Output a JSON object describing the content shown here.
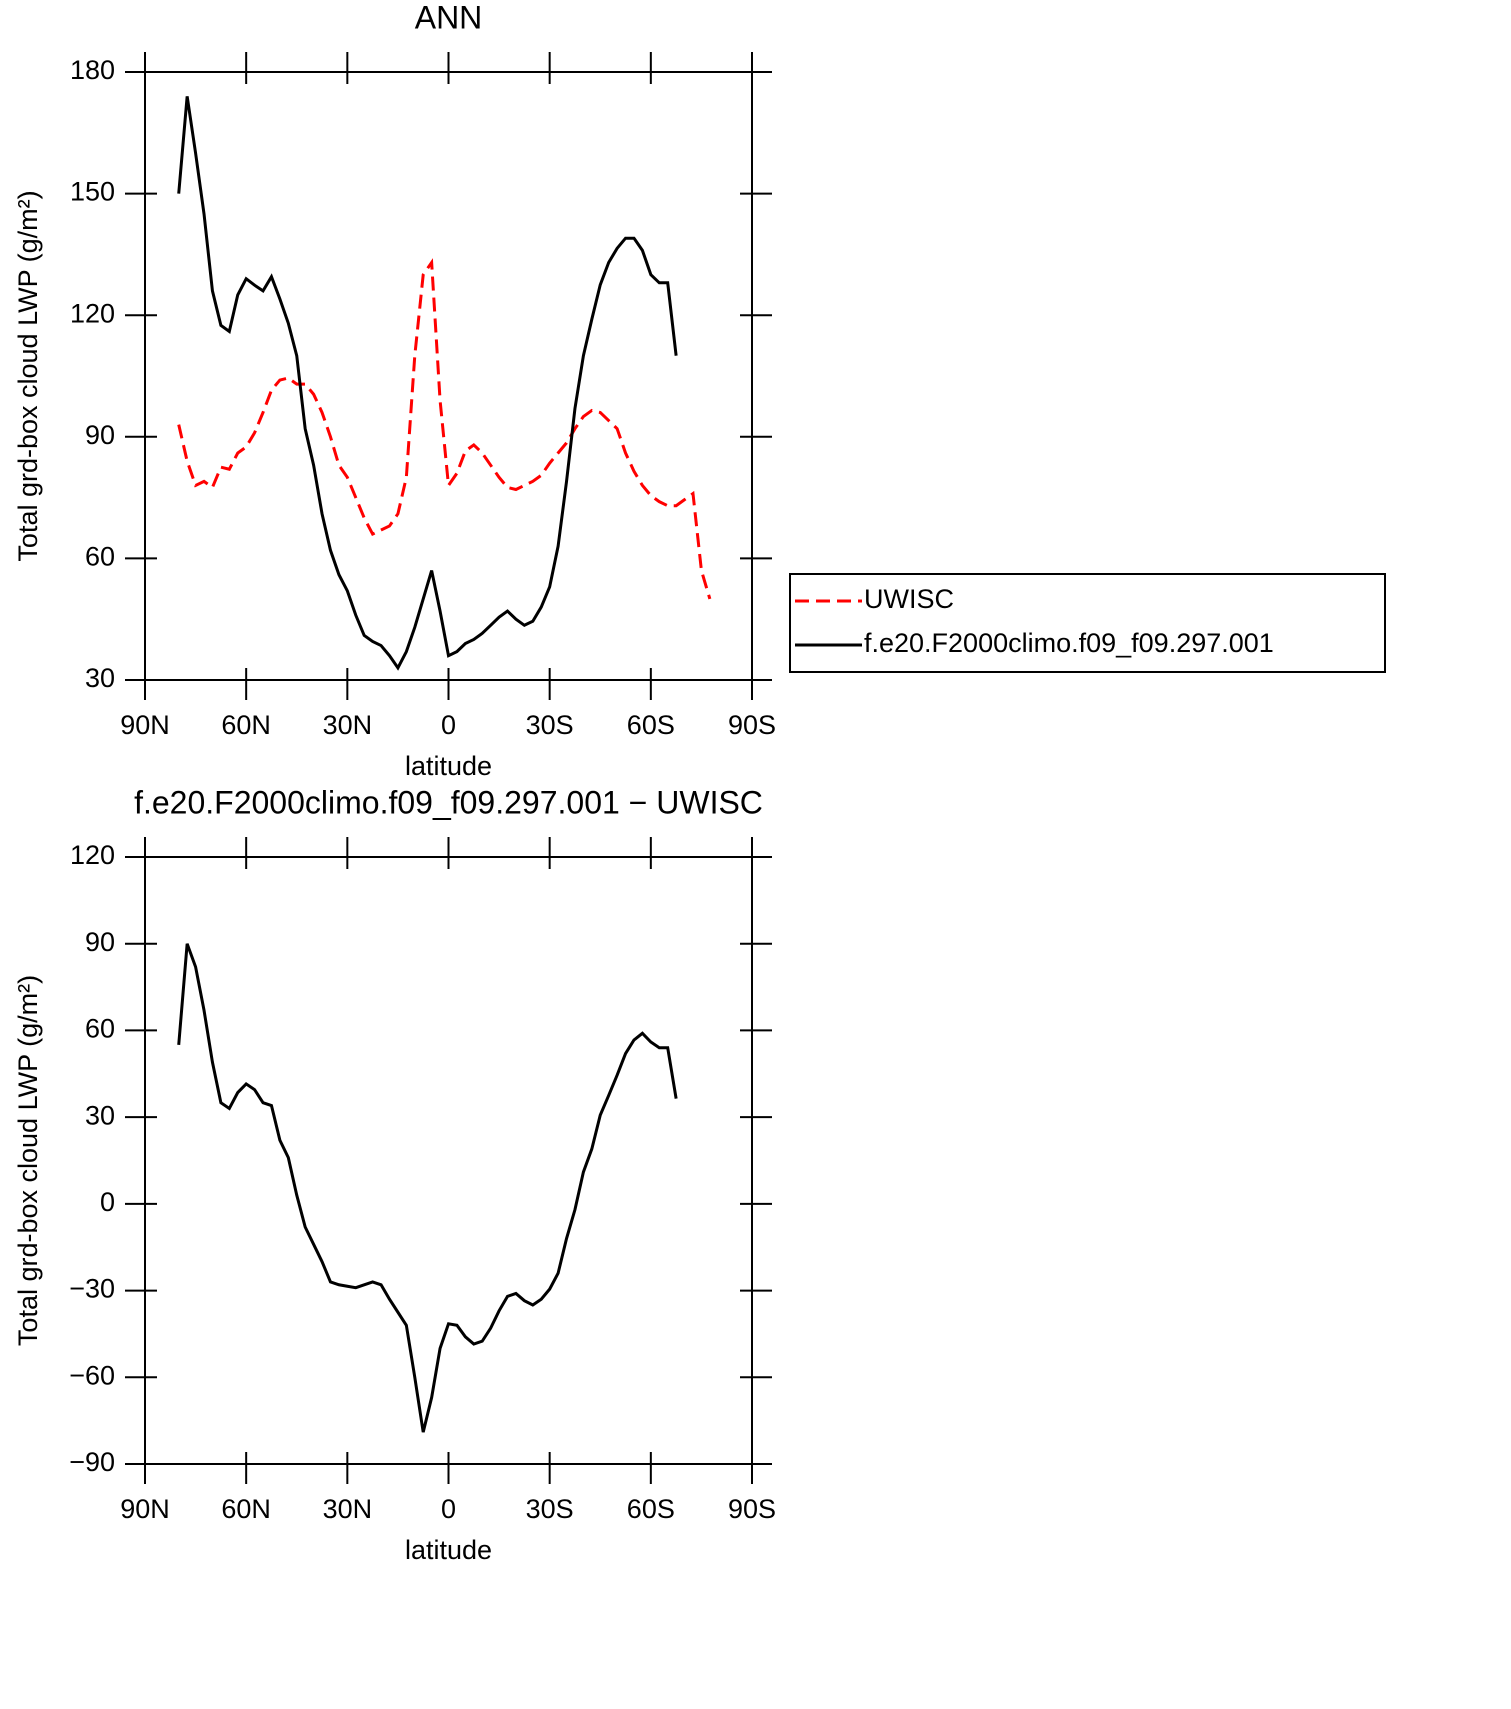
{
  "chart_data": [
    {
      "type": "line",
      "title": "ANN",
      "x_label": "latitude",
      "y_label": "Total grd-box cloud LWP (g/m²)",
      "x": [
        80,
        77.5,
        75,
        72.5,
        70,
        67.5,
        65,
        62.5,
        60,
        57.5,
        55,
        52.5,
        50,
        47.5,
        45,
        42.5,
        40,
        37.5,
        35,
        32.5,
        30,
        27.5,
        25,
        22.5,
        20,
        17.5,
        15,
        12.5,
        10,
        7.5,
        5,
        2.5,
        0,
        -2.5,
        -5,
        -7.5,
        -10,
        -12.5,
        -15,
        -17.5,
        -20,
        -22.5,
        -25,
        -27.5,
        -30,
        -32.5,
        -35,
        -37.5,
        -40,
        -42.5,
        -45,
        -47.5,
        -50,
        -52.5,
        -55,
        -57.5,
        -60,
        -62.5,
        -65,
        -67.5,
        -70,
        -72.5,
        -75,
        -77.5
      ],
      "xlim": [
        90,
        -90
      ],
      "xticks": [
        {
          "value": 90,
          "label": "90N"
        },
        {
          "value": 60,
          "label": "60N"
        },
        {
          "value": 30,
          "label": "30N"
        },
        0,
        {
          "value": -30,
          "label": "30S"
        },
        {
          "value": -60,
          "label": "60S"
        },
        {
          "value": -90,
          "label": "90S"
        }
      ],
      "ylim": [
        30,
        180
      ],
      "yticks": [
        30,
        60,
        90,
        120,
        150,
        180
      ],
      "legend": "right",
      "series": [
        {
          "name": "UWISC",
          "color": "#ff0000",
          "line_style": "dashed",
          "values": [
            93,
            84,
            78,
            79,
            77.5,
            82.5,
            82,
            86,
            87.5,
            91,
            96,
            101.5,
            104,
            104.5,
            103,
            103,
            100.5,
            96,
            90,
            83,
            80,
            75,
            70,
            66,
            67,
            68,
            71,
            80,
            110,
            130,
            133,
            99,
            78,
            81,
            86.5,
            88,
            86,
            83,
            80,
            77.5,
            77,
            78,
            79,
            80.5,
            83.5,
            86,
            88.5,
            92,
            95,
            96.5,
            96,
            94,
            92,
            86,
            81.5,
            78,
            75.5,
            74,
            73,
            73,
            74.5,
            76,
            57,
            50
          ]
        },
        {
          "name": "f.e20.F2000climo.f09_f09.297.001",
          "color": "#000000",
          "line_style": "solid",
          "values": [
            150,
            174,
            160,
            145,
            126,
            117.5,
            116,
            125,
            129,
            127.4,
            126,
            129.5,
            124,
            118,
            110,
            92,
            83,
            71,
            62,
            56,
            52,
            46,
            41,
            39.5,
            38.5,
            36,
            33,
            37,
            43,
            50,
            57,
            47,
            36,
            37,
            39,
            40,
            41.5,
            43.5,
            45.5,
            47,
            45,
            43.5,
            44.5,
            48,
            53,
            63,
            79,
            97,
            110,
            119,
            127.5,
            133,
            136.5,
            139,
            139,
            136,
            130,
            128,
            128,
            110,
            null,
            null,
            null,
            null
          ]
        }
      ]
    },
    {
      "type": "line",
      "title": "f.e20.F2000climo.f09_f09.297.001 − UWISC",
      "x_label": "latitude",
      "y_label": "Total grd-box cloud LWP (g/m²)",
      "x": [
        80,
        77.5,
        75,
        72.5,
        70,
        67.5,
        65,
        62.5,
        60,
        57.5,
        55,
        52.5,
        50,
        47.5,
        45,
        42.5,
        40,
        37.5,
        35,
        32.5,
        30,
        27.5,
        25,
        22.5,
        20,
        17.5,
        15,
        12.5,
        10,
        7.5,
        5,
        2.5,
        0,
        -2.5,
        -5,
        -7.5,
        -10,
        -12.5,
        -15,
        -17.5,
        -20,
        -22.5,
        -25,
        -27.5,
        -30,
        -32.5,
        -35,
        -37.5,
        -40,
        -42.5,
        -45,
        -47.5,
        -50,
        -52.5,
        -55,
        -57.5,
        -60,
        -62.5,
        -65,
        -67.5
      ],
      "xlim": [
        90,
        -90
      ],
      "xticks": [
        {
          "value": 90,
          "label": "90N"
        },
        {
          "value": 60,
          "label": "60N"
        },
        {
          "value": 30,
          "label": "30N"
        },
        0,
        {
          "value": -30,
          "label": "30S"
        },
        {
          "value": -60,
          "label": "60S"
        },
        {
          "value": -90,
          "label": "90S"
        }
      ],
      "ylim": [
        -90,
        120
      ],
      "yticks": [
        {
          "value": -90,
          "label": "−90"
        },
        {
          "value": -60,
          "label": "−60"
        },
        {
          "value": -30,
          "label": "−30"
        },
        0,
        30,
        60,
        90,
        120
      ],
      "series": [
        {
          "color": "#000000",
          "line_style": "solid",
          "values": [
            55,
            90,
            82,
            67,
            49,
            35,
            33,
            38.5,
            41.5,
            39.5,
            35,
            34,
            22,
            16,
            3,
            -8,
            -14,
            -20,
            -27,
            -28,
            -28.5,
            -29,
            -28,
            -27,
            -28,
            -33,
            -37.5,
            -42,
            -60,
            -79,
            -67,
            -50,
            -41.5,
            -42,
            -46,
            -48.5,
            -47.5,
            -43,
            -37,
            -32,
            -31,
            -33.5,
            -35,
            -33,
            -29.5,
            -24,
            -12,
            -2,
            11,
            19,
            30.7,
            37.5,
            44.5,
            52,
            56.7,
            59,
            56,
            54,
            54,
            36.4
          ]
        }
      ]
    }
  ]
}
